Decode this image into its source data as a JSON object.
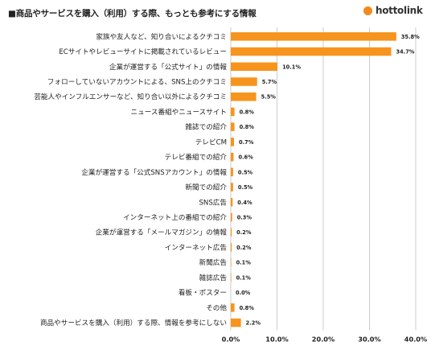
{
  "header": {
    "title": "■商品やサービスを購入（利用）する際、もっとも参考にする情報",
    "brand": "hottolink"
  },
  "colors": {
    "bar": "#f7941d",
    "brand_dot": "#f08a1c"
  },
  "chart_data": {
    "type": "bar",
    "orientation": "horizontal",
    "categories": [
      "家族や友人など、知り合いによるクチコミ",
      "ECサイトやレビューサイトに掲載されているレビュー",
      "企業が運営する「公式サイト」の情報",
      "フォローしていないアカウントによる、SNS上のクチコミ",
      "芸能人やインフルエンサーなど、知り合い以外によるクチコミ",
      "ニュース番組やニュースサイト",
      "雑誌での紹介",
      "テレビCM",
      "テレビ番組での紹介",
      "企業が運営する「公式SNSアカウント」の情報",
      "新聞での紹介",
      "SNS広告",
      "インターネット上の番組での紹介",
      "企業が運営する「メールマガジン」の情報",
      "インターネット広告",
      "新聞広告",
      "雑誌広告",
      "看板・ポスター",
      "その他",
      "商品やサービスを購入（利用）する際、情報を参考にしない"
    ],
    "values": [
      35.8,
      34.7,
      10.1,
      5.7,
      5.5,
      0.8,
      0.8,
      0.7,
      0.6,
      0.5,
      0.5,
      0.4,
      0.3,
      0.2,
      0.2,
      0.1,
      0.1,
      0.0,
      0.8,
      2.2
    ],
    "value_labels": [
      "35.8%",
      "34.7%",
      "10.1%",
      "5.7%",
      "5.5%",
      "0.8%",
      "0.8%",
      "0.7%",
      "0.6%",
      "0.5%",
      "0.5%",
      "0.4%",
      "0.3%",
      "0.2%",
      "0.2%",
      "0.1%",
      "0.1%",
      "0.0%",
      "0.8%",
      "2.2%"
    ],
    "xlim": [
      0,
      40
    ],
    "ticks": [
      0,
      10,
      20,
      30,
      40
    ],
    "tick_labels": [
      "0.0%",
      "10.0%",
      "20.0%",
      "30.0%",
      "40.0%"
    ],
    "grid": true,
    "legend": "none"
  }
}
